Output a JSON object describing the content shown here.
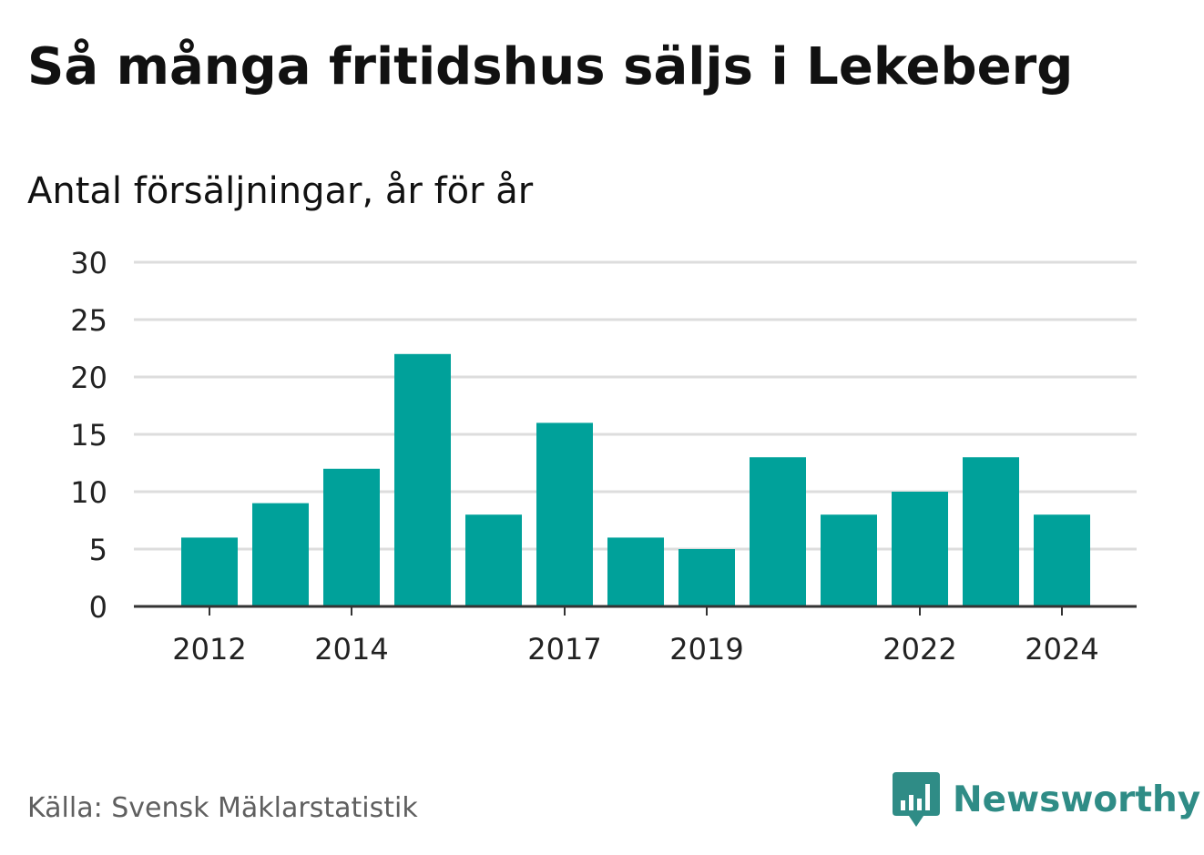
{
  "title": "Så många fritidshus säljs i Lekeberg",
  "subtitle": "Antal försäljningar, år för år",
  "source": "Källa: Svensk Mäklarstatistik",
  "brand": {
    "name": "Newsworthy",
    "color": "#2f8c86",
    "icon": "bar-chart-speech-bubble-icon"
  },
  "colors": {
    "bar": "#00a19a",
    "grid": "#dddddd",
    "axis": "#333333",
    "tick_text": "#222222"
  },
  "chart_data": {
    "type": "bar",
    "categories": [
      "2012",
      "2013",
      "2014",
      "2015",
      "2016",
      "2017",
      "2018",
      "2019",
      "2020",
      "2021",
      "2022",
      "2023",
      "2024"
    ],
    "x_tick_labels": [
      "2012",
      "2014",
      "2017",
      "2019",
      "2022",
      "2024"
    ],
    "values": [
      6,
      9,
      12,
      22,
      8,
      16,
      6,
      5,
      13,
      8,
      10,
      13,
      8
    ],
    "ylim": [
      0,
      30
    ],
    "yticks": [
      0,
      5,
      10,
      15,
      20,
      25,
      30
    ],
    "grid": true,
    "legend": "none"
  }
}
